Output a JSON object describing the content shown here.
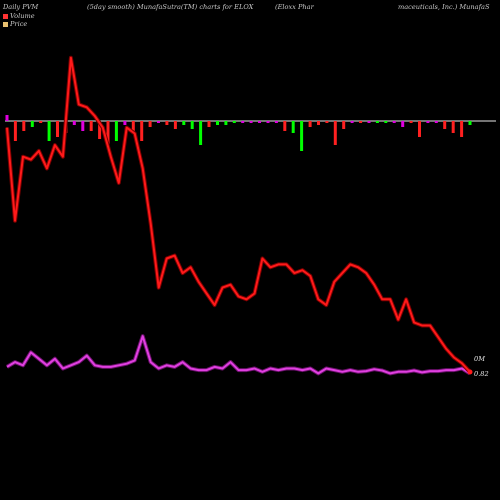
{
  "header": {
    "col1": "Daily PVM",
    "col2": "(5day smooth) MunafaSutra(TM) charts for ELOX",
    "col3": "(Eloxx Phar",
    "col4": "maceuticals, Inc.) MunafaS"
  },
  "legend": {
    "volume_label": "Volume",
    "price_label": "Price",
    "volume_color": "#ff3333",
    "price_color": "#e8c070"
  },
  "right_labels": {
    "volume_zero": "0M",
    "price_last": "0.82"
  },
  "colors": {
    "price_line": "#ff1a1a",
    "price_halo": "#7a0000",
    "pvm_line": "#e040e0",
    "pvm_halo": "#6a106a",
    "bar_up": "#00ff00",
    "bar_down": "#ff2020",
    "bar_neutral": "#e000e0",
    "baseline": "#e8e8e8"
  },
  "chart_data": {
    "type": "line",
    "price": [
      84,
      52,
      74,
      73,
      76,
      70,
      78,
      74,
      108,
      92,
      91,
      88,
      84,
      74,
      65,
      84,
      82,
      70,
      51,
      29,
      39,
      40,
      34,
      36,
      31,
      27,
      23,
      29,
      30,
      26,
      25,
      27,
      39,
      36,
      37,
      37,
      34,
      35,
      33,
      25,
      23,
      31,
      34,
      37,
      36,
      34,
      30,
      25,
      25,
      18,
      25,
      17,
      16,
      16,
      12,
      8,
      5,
      3,
      0
    ],
    "pvm": [
      2.5,
      4,
      3,
      7,
      5,
      3,
      5,
      2,
      3,
      4,
      6,
      3,
      2.5,
      2.5,
      3,
      3.5,
      4.5,
      12,
      4,
      2,
      3,
      2.5,
      4,
      2,
      1.5,
      1.5,
      2.5,
      2,
      4,
      1.5,
      1.5,
      2,
      1,
      2,
      1.5,
      2,
      2,
      1.5,
      2,
      0.5,
      2,
      1.5,
      1,
      1.5,
      1,
      1.2,
      1.8,
      1.4,
      0.5,
      1,
      1,
      1.4,
      0.8,
      1.2,
      1.2,
      1.5,
      1.5,
      2,
      0.5
    ],
    "volume_bars": [
      {
        "v": 3,
        "c": "neutral"
      },
      {
        "v": -10,
        "c": "down"
      },
      {
        "v": -5,
        "c": "down"
      },
      {
        "v": -3,
        "c": "up"
      },
      {
        "v": -1,
        "c": "down"
      },
      {
        "v": -10,
        "c": "up"
      },
      {
        "v": -8,
        "c": "down"
      },
      {
        "v": -6,
        "c": "down"
      },
      {
        "v": -2,
        "c": "neutral"
      },
      {
        "v": -5,
        "c": "neutral"
      },
      {
        "v": -5,
        "c": "down"
      },
      {
        "v": -9,
        "c": "down"
      },
      {
        "v": -12,
        "c": "down"
      },
      {
        "v": -10,
        "c": "up"
      },
      {
        "v": -2,
        "c": "neutral"
      },
      {
        "v": -5,
        "c": "down"
      },
      {
        "v": -10,
        "c": "down"
      },
      {
        "v": -3,
        "c": "down"
      },
      {
        "v": -1,
        "c": "neutral"
      },
      {
        "v": -2,
        "c": "down"
      },
      {
        "v": -4,
        "c": "down"
      },
      {
        "v": -2,
        "c": "up"
      },
      {
        "v": -4,
        "c": "up"
      },
      {
        "v": -12,
        "c": "up"
      },
      {
        "v": -3,
        "c": "down"
      },
      {
        "v": -2,
        "c": "up"
      },
      {
        "v": -2,
        "c": "up"
      },
      {
        "v": -1,
        "c": "up"
      },
      {
        "v": -1,
        "c": "neutral"
      },
      {
        "v": -1,
        "c": "neutral"
      },
      {
        "v": -1,
        "c": "neutral"
      },
      {
        "v": -1,
        "c": "neutral"
      },
      {
        "v": -1,
        "c": "neutral"
      },
      {
        "v": -5,
        "c": "down"
      },
      {
        "v": -6,
        "c": "up"
      },
      {
        "v": -15,
        "c": "up"
      },
      {
        "v": -3,
        "c": "down"
      },
      {
        "v": -2,
        "c": "down"
      },
      {
        "v": -1,
        "c": "down"
      },
      {
        "v": -12,
        "c": "down"
      },
      {
        "v": -4,
        "c": "down"
      },
      {
        "v": -1,
        "c": "neutral"
      },
      {
        "v": -1,
        "c": "down"
      },
      {
        "v": -1,
        "c": "neutral"
      },
      {
        "v": -1,
        "c": "up"
      },
      {
        "v": -1,
        "c": "up"
      },
      {
        "v": -1,
        "c": "neutral"
      },
      {
        "v": -3,
        "c": "neutral"
      },
      {
        "v": -1,
        "c": "down"
      },
      {
        "v": -8,
        "c": "down"
      },
      {
        "v": -1,
        "c": "neutral"
      },
      {
        "v": -1,
        "c": "neutral"
      },
      {
        "v": -4,
        "c": "down"
      },
      {
        "v": -6,
        "c": "down"
      },
      {
        "v": -8,
        "c": "down"
      },
      {
        "v": -2,
        "c": "up"
      }
    ],
    "price_ylim": [
      0,
      110
    ],
    "pvm_ylim": [
      0,
      30
    ],
    "grid": false,
    "legend": "top-left"
  }
}
